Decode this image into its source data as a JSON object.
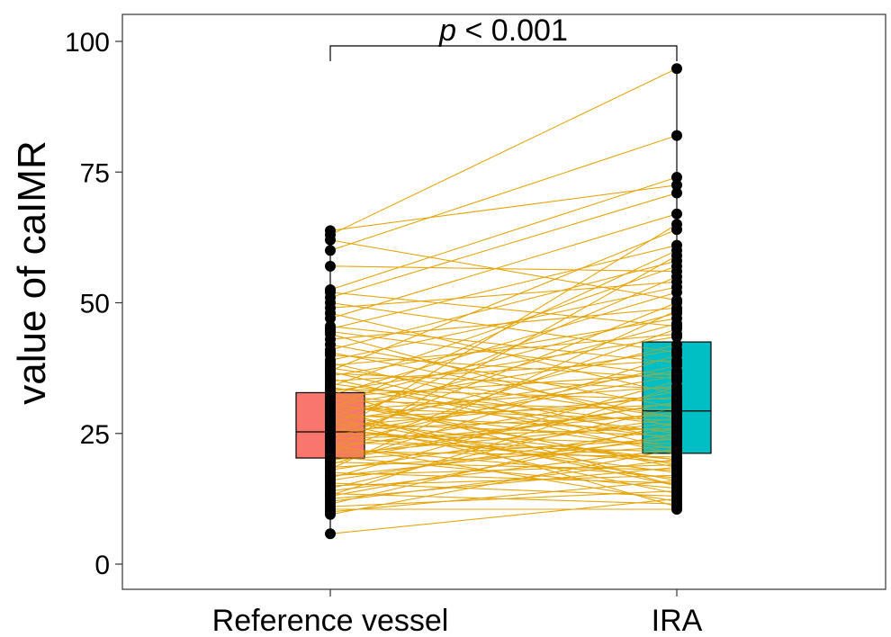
{
  "chart_data": {
    "type": "box",
    "title": "",
    "xlabel": "",
    "ylabel": "value of caIMR",
    "ylim": [
      -5,
      105
    ],
    "yticks": [
      0,
      25,
      50,
      75,
      100
    ],
    "categories": [
      "Reference vessel",
      "IRA"
    ],
    "annotation": {
      "p_italic": "p",
      "p_rest": " < 0.001"
    },
    "boxes": [
      {
        "category": "Reference vessel",
        "q1": 20.3,
        "median": 25.3,
        "q3": 32.8,
        "whisker_low": 5.8,
        "whisker_high": 63.8,
        "color": "#F8766D"
      },
      {
        "category": "IRA",
        "q1": 21.2,
        "median": 29.3,
        "q3": 42.5,
        "whisker_low": 10.0,
        "whisker_high": 94.8,
        "color": "#00BFC4"
      }
    ],
    "line_color": "#E5A50A",
    "pairs": [
      [
        5.8,
        12.5
      ],
      [
        10.0,
        16.0
      ],
      [
        10.5,
        10.5
      ],
      [
        11.0,
        14.0
      ],
      [
        12.0,
        20.0
      ],
      [
        12.5,
        18.5
      ],
      [
        13.0,
        25.0
      ],
      [
        13.5,
        11.5
      ],
      [
        14.0,
        22.0
      ],
      [
        14.5,
        30.0
      ],
      [
        15.0,
        17.0
      ],
      [
        15.5,
        13.0
      ],
      [
        16.0,
        26.0
      ],
      [
        16.5,
        35.0
      ],
      [
        17.0,
        19.0
      ],
      [
        17.5,
        15.5
      ],
      [
        18.0,
        28.0
      ],
      [
        18.5,
        22.5
      ],
      [
        19.0,
        40.0
      ],
      [
        19.5,
        18.0
      ],
      [
        20.0,
        24.0
      ],
      [
        20.3,
        31.0
      ],
      [
        20.6,
        14.5
      ],
      [
        21.0,
        27.0
      ],
      [
        21.3,
        45.0
      ],
      [
        21.6,
        20.5
      ],
      [
        22.0,
        33.0
      ],
      [
        22.3,
        16.5
      ],
      [
        22.6,
        29.0
      ],
      [
        23.0,
        38.0
      ],
      [
        23.3,
        21.5
      ],
      [
        23.6,
        50.0
      ],
      [
        24.0,
        26.0
      ],
      [
        24.3,
        19.5
      ],
      [
        24.6,
        36.0
      ],
      [
        25.0,
        23.0
      ],
      [
        25.3,
        42.0
      ],
      [
        25.6,
        28.5
      ],
      [
        26.0,
        17.5
      ],
      [
        26.3,
        32.0
      ],
      [
        26.6,
        55.0
      ],
      [
        27.0,
        24.5
      ],
      [
        27.3,
        37.0
      ],
      [
        27.6,
        20.0
      ],
      [
        28.0,
        30.5
      ],
      [
        28.3,
        46.0
      ],
      [
        28.6,
        25.5
      ],
      [
        29.0,
        15.0
      ],
      [
        29.3,
        34.0
      ],
      [
        29.6,
        60.0
      ],
      [
        30.0,
        27.5
      ],
      [
        30.3,
        41.0
      ],
      [
        30.6,
        22.0
      ],
      [
        31.0,
        48.0
      ],
      [
        31.3,
        29.5
      ],
      [
        31.6,
        18.5
      ],
      [
        32.0,
        36.5
      ],
      [
        32.3,
        52.0
      ],
      [
        32.6,
        24.0
      ],
      [
        33.0,
        43.5
      ],
      [
        33.5,
        31.5
      ],
      [
        34.0,
        57.0
      ],
      [
        34.5,
        26.5
      ],
      [
        35.0,
        39.0
      ],
      [
        35.5,
        21.0
      ],
      [
        36.0,
        47.0
      ],
      [
        36.5,
        33.5
      ],
      [
        37.0,
        64.0
      ],
      [
        37.5,
        28.0
      ],
      [
        38.0,
        44.0
      ],
      [
        38.5,
        23.5
      ],
      [
        39.0,
        53.0
      ],
      [
        40.0,
        35.5
      ],
      [
        41.0,
        58.0
      ],
      [
        42.0,
        30.0
      ],
      [
        43.0,
        49.0
      ],
      [
        44.0,
        26.0
      ],
      [
        45.0,
        61.0
      ],
      [
        45.5,
        38.5
      ],
      [
        47.0,
        67.0
      ],
      [
        48.0,
        32.5
      ],
      [
        49.0,
        54.0
      ],
      [
        50.0,
        40.5
      ],
      [
        51.0,
        71.0
      ],
      [
        52.0,
        45.5
      ],
      [
        52.5,
        74.0
      ],
      [
        57.0,
        56.0
      ],
      [
        60.0,
        82.0
      ],
      [
        62.0,
        50.5
      ],
      [
        63.0,
        94.8
      ],
      [
        63.8,
        72.5
      ],
      [
        9.5,
        22.0
      ],
      [
        11.5,
        27.0
      ],
      [
        13.2,
        34.0
      ],
      [
        16.8,
        24.0
      ],
      [
        19.8,
        31.0
      ],
      [
        22.8,
        12.0
      ],
      [
        25.8,
        20.0
      ],
      [
        27.8,
        16.0
      ],
      [
        30.8,
        19.0
      ],
      [
        33.8,
        25.0
      ],
      [
        36.8,
        22.0
      ],
      [
        40.5,
        28.0
      ],
      [
        44.5,
        36.0
      ],
      [
        18.2,
        48.5
      ],
      [
        21.8,
        59.0
      ],
      [
        24.8,
        65.0
      ],
      [
        27.2,
        13.5
      ],
      [
        29.8,
        11.0
      ],
      [
        32.8,
        15.0
      ]
    ]
  }
}
